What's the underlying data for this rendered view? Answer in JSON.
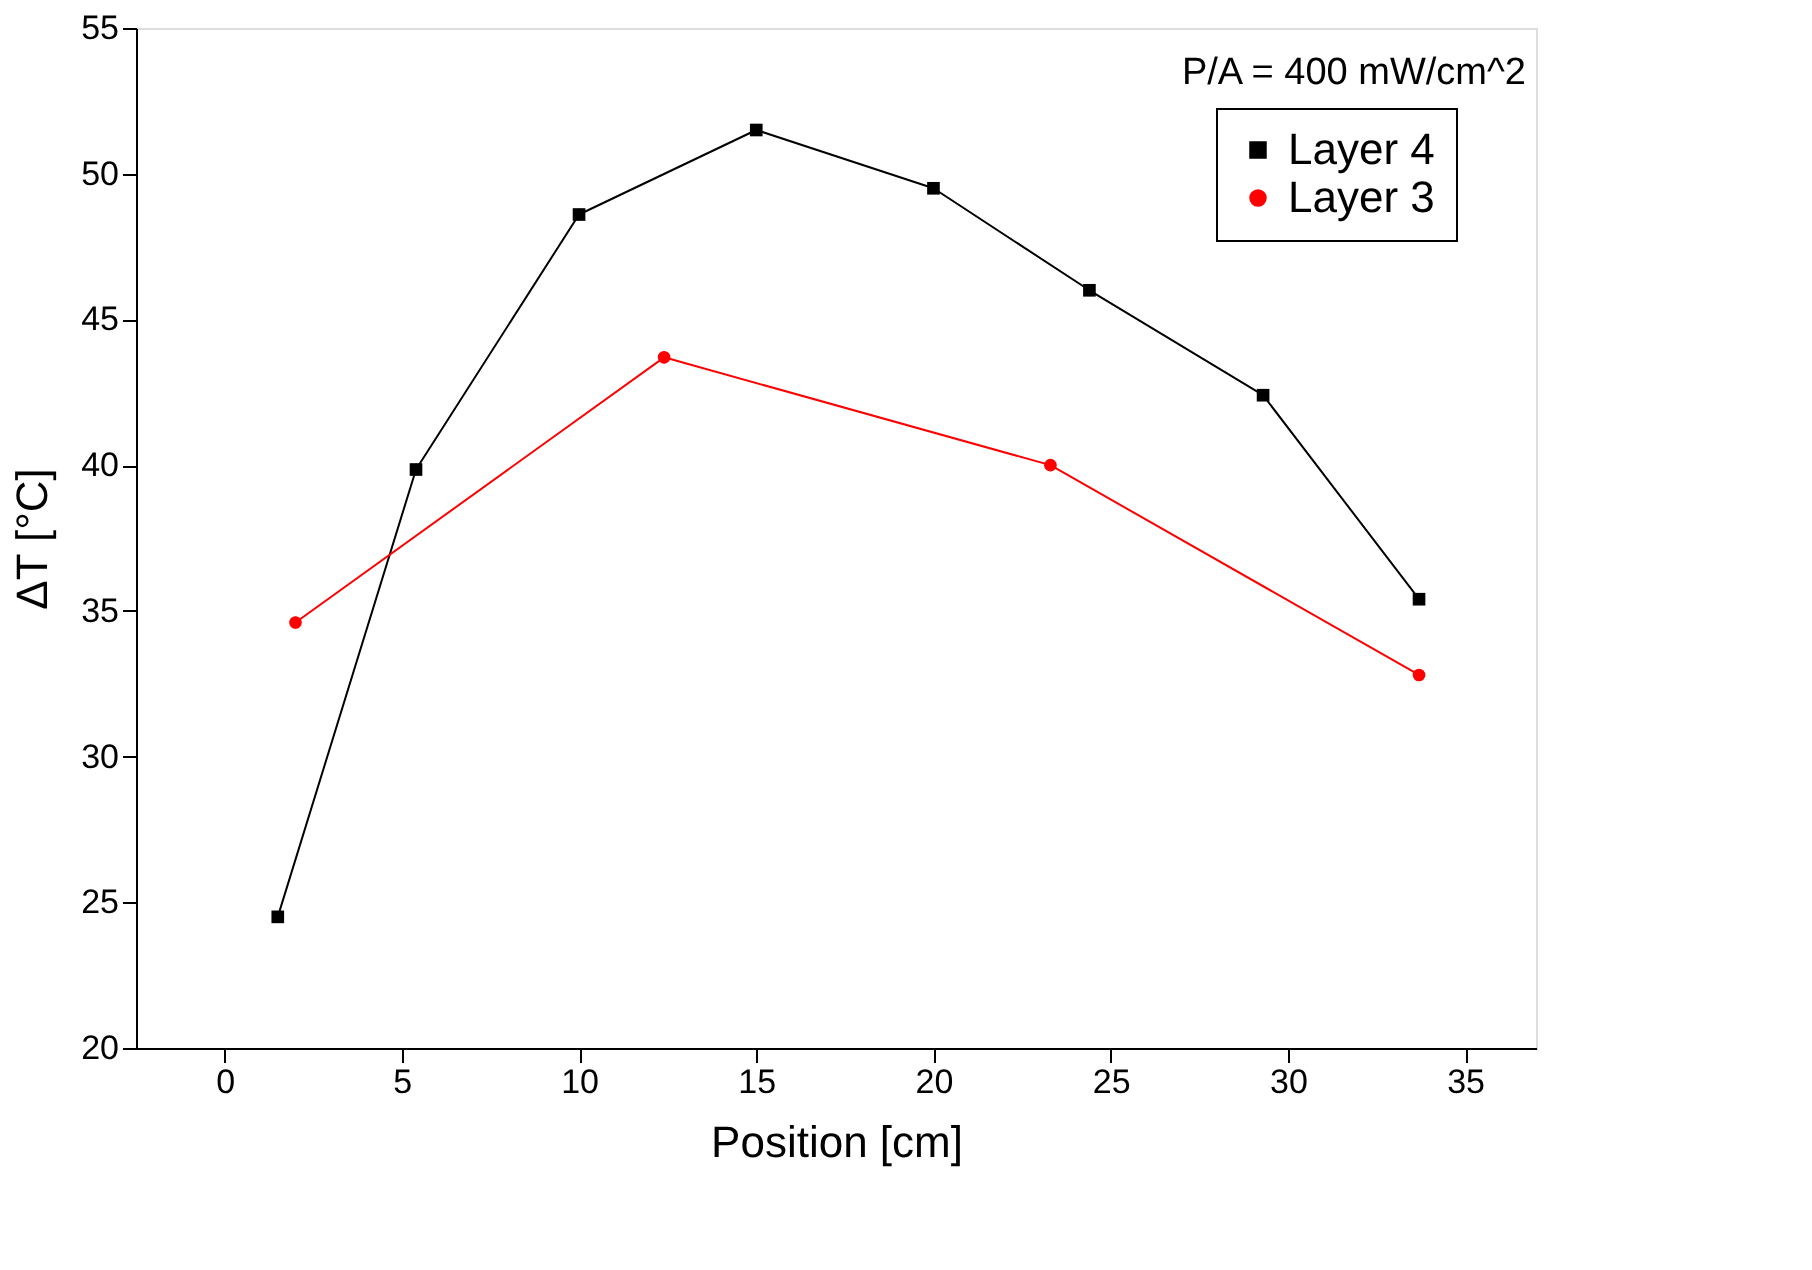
{
  "chart_data": {
    "type": "line",
    "xlabel": "Position [cm]",
    "ylabel": "ΔT [°C]",
    "annotations": [
      "P/A = 400 mW/cm^2"
    ],
    "xlim": [
      -2.5,
      37
    ],
    "xticks": [
      0,
      5,
      10,
      15,
      20,
      25,
      30,
      35
    ],
    "ylim": [
      20,
      55
    ],
    "yticks": [
      20,
      25,
      30,
      35,
      40,
      45,
      50,
      55
    ],
    "grid": false,
    "legend": "top right",
    "line_style": "solid",
    "series": [
      {
        "name": "Layer 4",
        "color": "#000000",
        "marker": "square",
        "x": [
          1.5,
          5.4,
          10,
          15,
          20,
          24.4,
          29.3,
          33.7
        ],
        "values": [
          24.5,
          39.85,
          48.6,
          51.5,
          49.5,
          46.0,
          42.4,
          35.4
        ],
        "errors": [
          0.2,
          0.2,
          0.2,
          0.2,
          0.2,
          0.2,
          0.2,
          0.2
        ]
      },
      {
        "name": "Layer 3",
        "color": "#ff0000",
        "marker": "circle",
        "x": [
          2.0,
          12.4,
          23.3,
          33.7
        ],
        "values": [
          34.6,
          43.7,
          40.0,
          32.8
        ],
        "errors": [
          0.2,
          0.2,
          0.2,
          0.2
        ]
      }
    ]
  }
}
